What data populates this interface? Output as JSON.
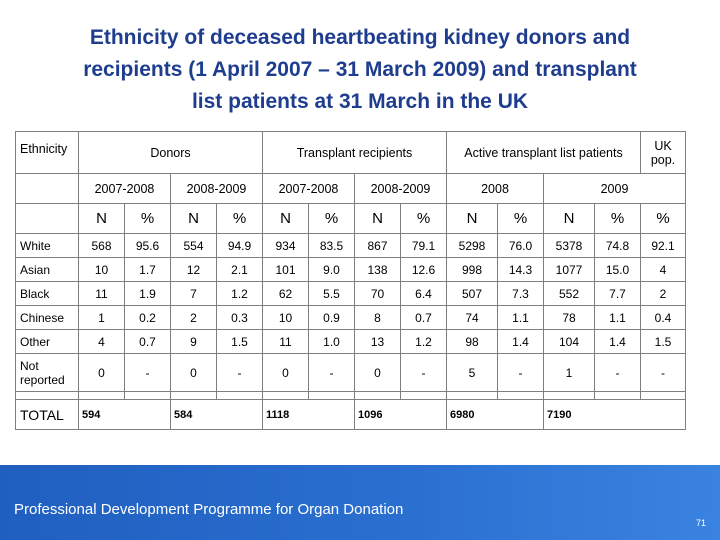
{
  "title": {
    "line1": "Ethnicity of deceased heartbeating kidney donors and",
    "line2": "recipients (1 April 2007 – 31 March 2009) and transplant",
    "line3": "list patients at 31 March in the UK"
  },
  "table": {
    "header1": {
      "ethnicity": "Ethnicity",
      "donors": "Donors",
      "recipients": "Transplant recipients",
      "active_list": "Active transplant list patients",
      "uk_pop": "UK pop."
    },
    "header2": {
      "donors_2007": "2007-2008",
      "donors_2008": "2008-2009",
      "recip_2007": "2007-2008",
      "recip_2008": "2008-2009",
      "list_2008": "2008",
      "list_2009": "2009"
    },
    "header3": [
      "N",
      "%",
      "N",
      "%",
      "N",
      "%",
      "N",
      "%",
      "N",
      "%",
      "N",
      "%",
      "%"
    ],
    "rows": [
      {
        "label": "White",
        "cells": [
          "568",
          "95.6",
          "554",
          "94.9",
          "934",
          "83.5",
          "867",
          "79.1",
          "5298",
          "76.0",
          "5378",
          "74.8",
          "92.1"
        ]
      },
      {
        "label": "Asian",
        "cells": [
          "10",
          "1.7",
          "12",
          "2.1",
          "101",
          "9.0",
          "138",
          "12.6",
          "998",
          "14.3",
          "1077",
          "15.0",
          "4"
        ]
      },
      {
        "label": "Black",
        "cells": [
          "11",
          "1.9",
          "7",
          "1.2",
          "62",
          "5.5",
          "70",
          "6.4",
          "507",
          "7.3",
          "552",
          "7.7",
          "2"
        ]
      },
      {
        "label": "Chinese",
        "cells": [
          "1",
          "0.2",
          "2",
          "0.3",
          "10",
          "0.9",
          "8",
          "0.7",
          "74",
          "1.1",
          "78",
          "1.1",
          "0.4"
        ]
      },
      {
        "label": "Other",
        "cells": [
          "4",
          "0.7",
          "9",
          "1.5",
          "11",
          "1.0",
          "13",
          "1.2",
          "98",
          "1.4",
          "104",
          "1.4",
          "1.5"
        ]
      },
      {
        "label": "Not reported",
        "cells": [
          "0",
          "-",
          "0",
          "-",
          "0",
          "-",
          "0",
          "-",
          "5",
          "-",
          "1",
          "-",
          "-"
        ]
      }
    ],
    "total": {
      "label": "TOTAL",
      "donors_2007": "594",
      "donors_2008": "584",
      "recip_2007": "1118",
      "recip_2008": "1096",
      "list_2008": "6980",
      "list_2009": "7190"
    }
  },
  "footer": {
    "text": "Professional Development Programme for Organ Donation",
    "page_number": "71"
  },
  "colors": {
    "title": "#1f3d8f",
    "footer_bg": "#2a6fd0",
    "border": "#7f7f7f"
  }
}
